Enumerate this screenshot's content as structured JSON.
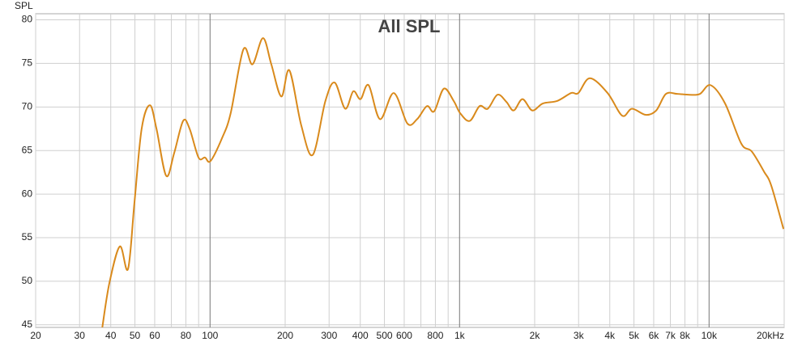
{
  "chart_data": {
    "type": "line",
    "title": "All SPL",
    "y_label": "SPL",
    "xscale": "log",
    "grid": true,
    "color": "#d98a1c",
    "xlim": [
      20,
      20000
    ],
    "ylim": [
      44.7,
      80.7
    ],
    "xticks": [
      20,
      30,
      40,
      50,
      60,
      80,
      100,
      200,
      300,
      400,
      500,
      600,
      800,
      {
        "value": 1000,
        "label": "1k"
      },
      {
        "value": 2000,
        "label": "2k"
      },
      {
        "value": 3000,
        "label": "3k"
      },
      {
        "value": 4000,
        "label": "4k"
      },
      {
        "value": 5000,
        "label": "5k"
      },
      {
        "value": 6000,
        "label": "6k"
      },
      {
        "value": 7000,
        "label": "7k"
      },
      {
        "value": 8000,
        "label": "8k"
      },
      {
        "value": 10000,
        "label": "10k"
      },
      {
        "value": 20000,
        "label": "20kHz"
      }
    ],
    "x_minor_grid": [
      70,
      90,
      700,
      900,
      9000
    ],
    "yticks": [
      45,
      50,
      55,
      60,
      65,
      70,
      75,
      80
    ],
    "x": [
      37,
      39.5,
      43.5,
      46.9,
      49.8,
      53.2,
      57.4,
      61,
      66.7,
      71.8,
      78,
      82.8,
      89.9,
      95.4,
      100.5,
      112,
      121,
      136,
      148,
      163,
      176,
      193,
      208,
      232,
      258,
      290,
      316,
      348,
      375,
      401,
      432,
      480,
      545,
      618,
      676,
      740,
      791,
      865,
      947,
      1005,
      1099,
      1203,
      1297,
      1419,
      1539,
      1648,
      1787,
      1956,
      2155,
      2466,
      2800,
      2993,
      3330,
      3920,
      4485,
      4909,
      5570,
      6140,
      6715,
      7450,
      8340,
      9190,
      10140,
      11590,
      13460,
      14820,
      16590,
      17740,
      19870
    ],
    "values": [
      44.7,
      49.8,
      54.0,
      51.4,
      59.1,
      67.5,
      70.2,
      67.5,
      62.1,
      64.7,
      68.4,
      67.5,
      64.2,
      64.2,
      63.8,
      66.5,
      69.3,
      76.6,
      74.9,
      77.9,
      74.9,
      71.2,
      74.2,
      67.9,
      64.5,
      70.7,
      72.8,
      69.8,
      71.8,
      70.9,
      72.5,
      68.6,
      71.6,
      68.1,
      68.6,
      70.1,
      69.5,
      72.1,
      70.7,
      69.3,
      68.4,
      70.1,
      69.8,
      71.4,
      70.6,
      69.6,
      70.9,
      69.6,
      70.4,
      70.7,
      71.6,
      71.6,
      73.3,
      71.6,
      69.0,
      69.8,
      69.1,
      69.6,
      71.5,
      71.5,
      71.4,
      71.5,
      72.5,
      70.4,
      65.8,
      64.9,
      62.6,
      61.0,
      56.0
    ]
  }
}
